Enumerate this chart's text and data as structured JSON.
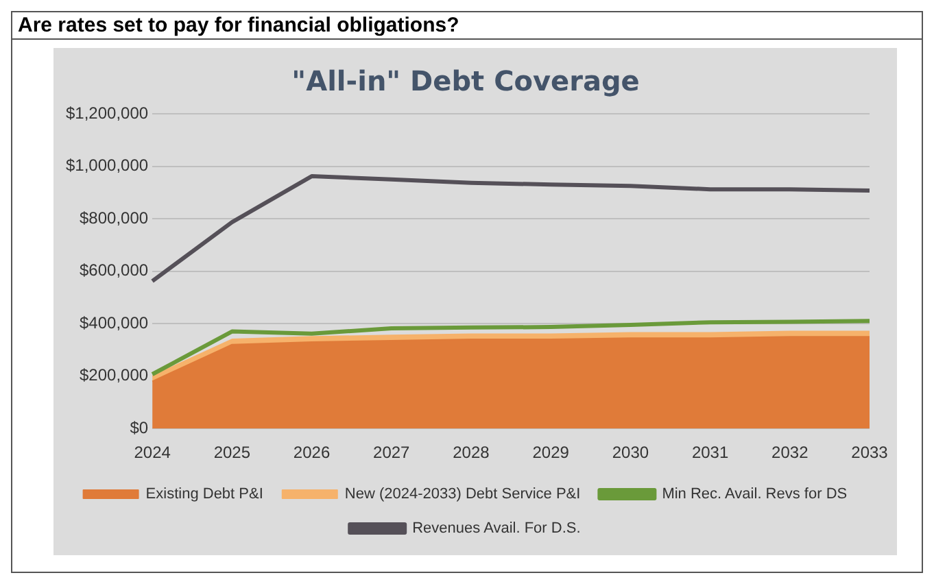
{
  "chart_data": {
    "type": "area",
    "title": "Are rates set to pay for financial obligations?",
    "subtitle": "\"All-in\" Debt Coverage",
    "categories": [
      "2024",
      "2025",
      "2026",
      "2027",
      "2028",
      "2029",
      "2030",
      "2031",
      "2032",
      "2033"
    ],
    "series": [
      {
        "name": "Existing Debt P&I",
        "color": "#e07b39",
        "values": [
          180000,
          320000,
          330000,
          335000,
          340000,
          340000,
          345000,
          345000,
          350000,
          350000
        ]
      },
      {
        "name": "New (2024-2033) Debt Service P&I",
        "color": "#f6b26b",
        "values": [
          20000,
          20000,
          20000,
          20000,
          20000,
          20000,
          20000,
          20000,
          20000,
          20000
        ]
      },
      {
        "name": "Min Rec. Avail. Revs for DS",
        "type": "line",
        "color": "#6a9a3a",
        "values": [
          207000,
          370000,
          362000,
          382000,
          385000,
          387000,
          395000,
          405000,
          407000,
          410000
        ]
      },
      {
        "name": "Revenues Avail. For D.S.",
        "type": "line",
        "color": "#555058",
        "values": [
          562000,
          787000,
          962000,
          950000,
          937000,
          930000,
          925000,
          912000,
          912000,
          907000
        ]
      }
    ],
    "stacked": true,
    "ylim": [
      0,
      1200000
    ],
    "yticks": [
      {
        "value": 0,
        "label": "$0"
      },
      {
        "value": 200000,
        "label": "$200,000"
      },
      {
        "value": 400000,
        "label": "$400,000"
      },
      {
        "value": 600000,
        "label": "$600,000"
      },
      {
        "value": 800000,
        "label": "$800,000"
      },
      {
        "value": 1000000,
        "label": "$1,000,000"
      },
      {
        "value": 1200000,
        "label": "$1,200,000"
      }
    ],
    "grid": "y",
    "legend": "bottom",
    "marker": "none"
  }
}
